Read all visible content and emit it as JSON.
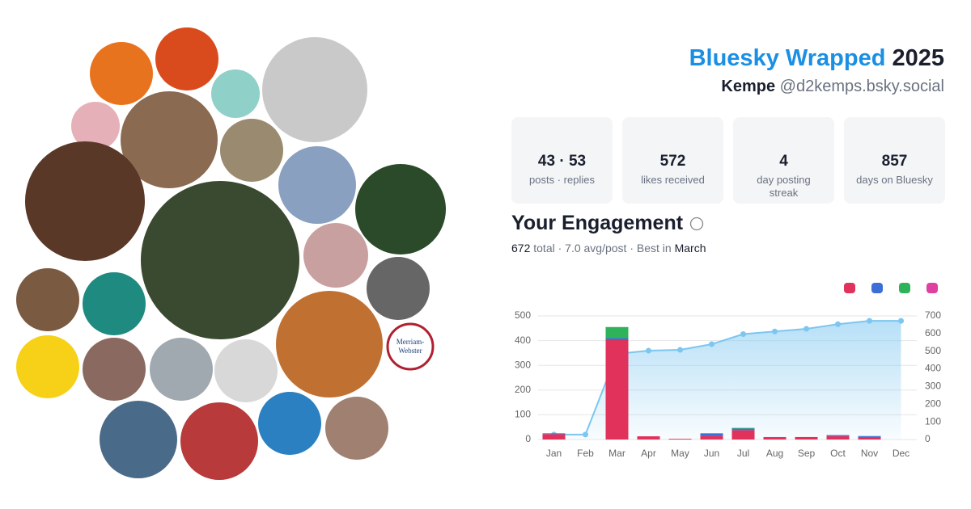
{
  "header": {
    "title": "Bluesky Wrapped",
    "year": "2025",
    "name": "Kempe",
    "handle": "@d2kemps.bsky.social"
  },
  "logo_text": [
    "Merriam-",
    "Webster"
  ],
  "stats": [
    {
      "value": "43 · 53",
      "label": "posts · replies"
    },
    {
      "value": "572",
      "label": "likes received"
    },
    {
      "value": "4",
      "label": "day posting streak"
    },
    {
      "value": "857",
      "label": "days on Bluesky"
    }
  ],
  "engagement": {
    "title": "Your Engagement",
    "summary": [
      "672",
      "total",
      "·",
      "7.0 avg/post",
      "·",
      "Best in",
      "March"
    ]
  },
  "chart_data": {
    "type": "bar",
    "categories": [
      "Jan",
      "Feb",
      "Mar",
      "Apr",
      "May",
      "Jun",
      "Jul",
      "Aug",
      "Sep",
      "Oct",
      "Nov",
      "Dec"
    ],
    "series": [
      {
        "color": "#e0325a",
        "values": [
          22,
          0,
          402,
          13,
          3,
          15,
          38,
          8,
          10,
          14,
          10,
          0
        ]
      },
      {
        "color": "#3b6fd6",
        "values": [
          3,
          0,
          8,
          0,
          0,
          10,
          6,
          2,
          0,
          4,
          4,
          0
        ]
      },
      {
        "color": "#2fb35a",
        "values": [
          0,
          0,
          45,
          0,
          0,
          0,
          3,
          0,
          0,
          0,
          0,
          0
        ]
      },
      {
        "color": "#e040a0",
        "values": [
          0,
          0,
          0,
          0,
          0,
          0,
          0,
          0,
          0,
          0,
          0,
          0
        ]
      },
      {
        "color": "#7cc6f0",
        "type": "line",
        "axis": "y2",
        "values": [
          28,
          28,
          485,
          503,
          508,
          540,
          597,
          612,
          627,
          653,
          672,
          672
        ]
      }
    ],
    "ylim": [
      0,
      500
    ],
    "yticks": [
      0,
      100,
      200,
      300,
      400,
      500
    ],
    "y2lim": [
      0,
      700
    ],
    "y2ticks": [
      0,
      100,
      200,
      300,
      400,
      500,
      600,
      700
    ],
    "grid": true,
    "stacked": true
  }
}
